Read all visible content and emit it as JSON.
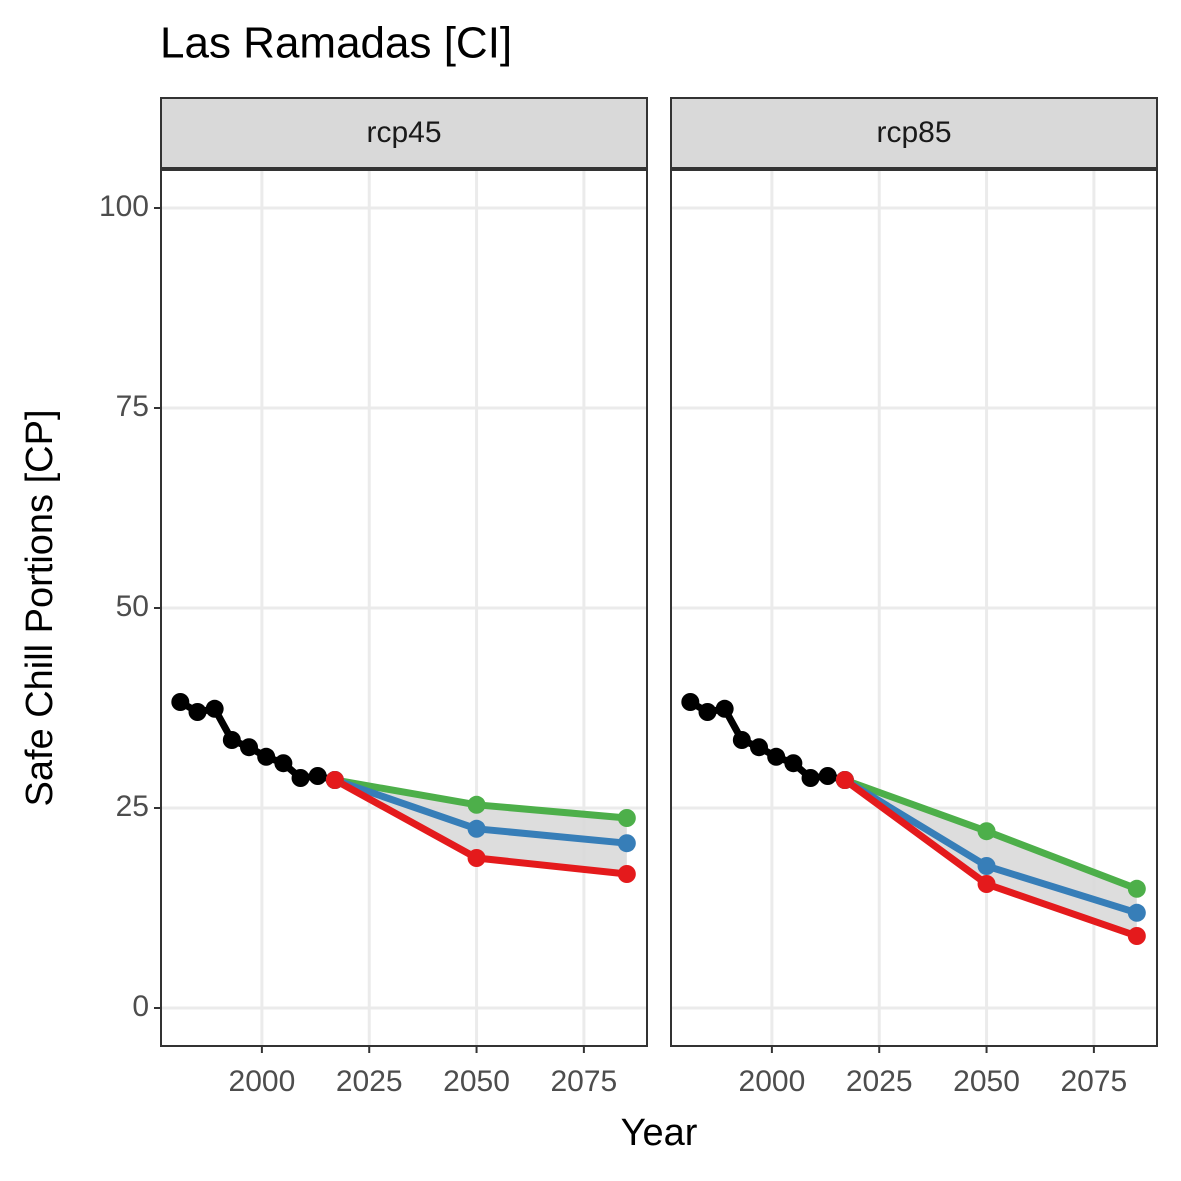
{
  "chart_data": {
    "type": "line",
    "title": "Las Ramadas [CI]",
    "x_label": "Year",
    "y_label": "Safe Chill Portions [CP]",
    "xlim": [
      1976.5,
      2089.7
    ],
    "ylim": [
      -4.75,
      104.75
    ],
    "xticks": [
      2000,
      2025,
      2050,
      2075
    ],
    "yticks": [
      0,
      25,
      50,
      75,
      100
    ],
    "grid": true,
    "panels": [
      {
        "name": "rcp45",
        "series": [
          {
            "color": "#000000",
            "x": [
              1981,
              1985,
              1989,
              1993,
              1997,
              2001,
              2005,
              2009,
              2013,
              2017
            ],
            "values": [
              38.25,
              37,
              37.4,
              33.5,
              32.6,
              31.4,
              30.6,
              28.75,
              29,
              28.5
            ]
          },
          {
            "color": "#4daf4a",
            "x": [
              2017,
              2050,
              2085
            ],
            "values": [
              28.5,
              25.4,
              23.75
            ]
          },
          {
            "color": "#377eb8",
            "x": [
              2017,
              2050,
              2085
            ],
            "values": [
              28.5,
              22.4,
              20.6
            ]
          },
          {
            "color": "#e41a1c",
            "x": [
              2017,
              2050,
              2085
            ],
            "values": [
              28.5,
              18.75,
              16.75
            ]
          }
        ]
      },
      {
        "name": "rcp85",
        "series": [
          {
            "color": "#000000",
            "x": [
              1981,
              1985,
              1989,
              1993,
              1997,
              2001,
              2005,
              2009,
              2013,
              2017
            ],
            "values": [
              38.25,
              37,
              37.4,
              33.5,
              32.6,
              31.4,
              30.6,
              28.75,
              29,
              28.5
            ]
          },
          {
            "color": "#4daf4a",
            "x": [
              2017,
              2050,
              2085
            ],
            "values": [
              28.5,
              22.1,
              14.9
            ]
          },
          {
            "color": "#377eb8",
            "x": [
              2017,
              2050,
              2085
            ],
            "values": [
              28.5,
              17.75,
              11.9
            ]
          },
          {
            "color": "#e41a1c",
            "x": [
              2017,
              2050,
              2085
            ],
            "values": [
              28.5,
              15.5,
              9
            ]
          }
        ]
      }
    ]
  }
}
